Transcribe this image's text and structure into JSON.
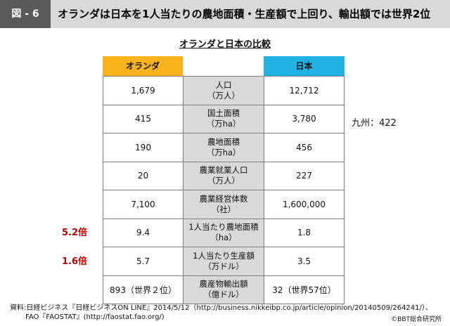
{
  "header": {
    "figure_label": "図 - 6",
    "title": "オランダは日本を1人当たりの農地面積・生産額で上回り、輸出額では世界2位"
  },
  "table": {
    "title": "オランダと日本の比較",
    "col_netherlands": "オランダ",
    "col_japan": "日本",
    "rows": [
      {
        "nl": "1,679",
        "item1": "人口",
        "item2": "（万人）",
        "jp": "12,712"
      },
      {
        "nl": "415",
        "item1": "国土面積",
        "item2": "（万ha）",
        "jp": "3,780"
      },
      {
        "nl": "190",
        "item1": "農地面積",
        "item2": "（万ha）",
        "jp": "456"
      },
      {
        "nl": "20",
        "item1": "農業就業人口",
        "item2": "（万人）",
        "jp": "227"
      },
      {
        "nl": "7,100",
        "item1": "農業経営体数",
        "item2": "（社）",
        "jp": "1,600,000"
      },
      {
        "nl": "9.4",
        "item1": "1人当たり農地面積",
        "item2": "（ha）",
        "jp": "1.8"
      },
      {
        "nl": "5.7",
        "item1": "1人当たり生産額",
        "item2": "（万ドル）",
        "jp": "3.5"
      },
      {
        "nl": "893（世界２位）",
        "item1": "農産物輸出額",
        "item2": "（億ドル）",
        "jp": "32（世界57位）"
      }
    ],
    "ratio_farmland": "5.2倍",
    "ratio_production": "1.6倍",
    "kyushu_note": "九州：422"
  },
  "footer": {
    "source_line1": "資料:日経ビジネス『日経ビジネスON LINE』2014/5/12（http://business.nikkeibp.co.jp/article/opinion/20140509/264241/）、",
    "source_line2": "FAO『FAOSTAT』(http://faostat.fao.org/)",
    "credit": "©BBT総合研究所"
  }
}
